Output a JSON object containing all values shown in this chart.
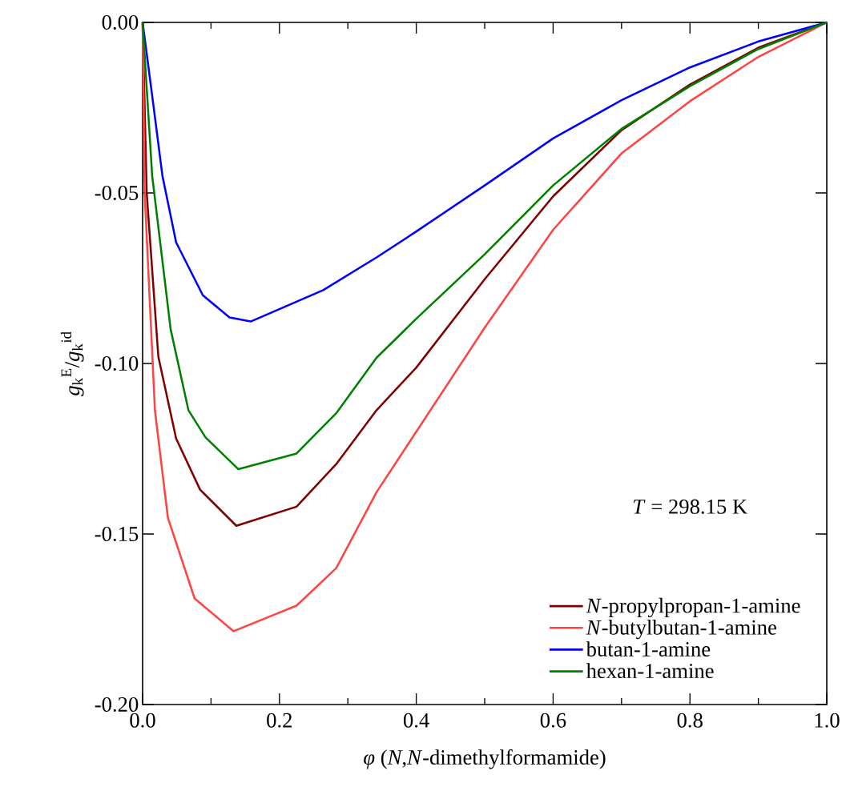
{
  "chart_data": {
    "type": "line",
    "xlabel": "*φ* (*N*,*N*-dimethylformamide)",
    "ylabel": "*g*$_{k}$$^{E}$/*g*$_{k}$$^{id}$",
    "annotations": [
      "*T* = 298.15 K"
    ],
    "xlim": [
      0,
      1
    ],
    "ylim": [
      -0.2,
      0
    ],
    "xticks": [
      {
        "value": 0,
        "label": "0.0"
      },
      {
        "value": 0.1,
        "label": null
      },
      {
        "value": 0.2,
        "label": "0.2"
      },
      {
        "value": 0.3,
        "label": null
      },
      {
        "value": 0.4,
        "label": "0.4"
      },
      {
        "value": 0.5,
        "label": null
      },
      {
        "value": 0.6,
        "label": "0.6"
      },
      {
        "value": 0.7,
        "label": null
      },
      {
        "value": 0.8,
        "label": "0.8"
      },
      {
        "value": 0.9,
        "label": null
      },
      {
        "value": 1,
        "label": "1.0"
      }
    ],
    "yticks": [
      {
        "value": -0.2,
        "label": "-0.20"
      },
      {
        "value": -0.15,
        "label": "-0.15"
      },
      {
        "value": -0.1,
        "label": "-0.10"
      },
      {
        "value": -0.05,
        "label": "-0.05"
      },
      {
        "value": 0,
        "label": "0.00"
      }
    ],
    "legend": "bottom right",
    "grid": false,
    "marker": "none",
    "line_style": "solid",
    "series": [
      {
        "name": "*N*-propylpropan-1-amine",
        "color": "#800000",
        "x": [
          0,
          0.006,
          0.023,
          0.049,
          0.084,
          0.137,
          0.225,
          0.283,
          0.342,
          0.4,
          0.5,
          0.6,
          0.7,
          0.8,
          0.9,
          1
        ],
        "values": [
          0,
          -0.05,
          -0.098,
          -0.122,
          -0.137,
          -0.1476,
          -0.142,
          -0.1295,
          -0.1137,
          -0.1012,
          -0.0753,
          -0.051,
          -0.0316,
          -0.0182,
          -0.0074,
          0
        ]
      },
      {
        "name": "*N*-butylbutan-1-amine",
        "color": "#ff4444",
        "x": [
          0,
          0.003,
          0.018,
          0.037,
          0.076,
          0.133,
          0.225,
          0.283,
          0.342,
          0.4,
          0.5,
          0.6,
          0.7,
          0.8,
          0.9,
          1
        ],
        "values": [
          0,
          -0.05,
          -0.1137,
          -0.1453,
          -0.1689,
          -0.1785,
          -0.171,
          -0.16,
          -0.1377,
          -0.12,
          -0.0895,
          -0.0608,
          -0.0384,
          -0.0231,
          -0.0101,
          0
        ]
      },
      {
        "name": "butan-1-amine",
        "color": "#0000ff",
        "x": [
          0,
          0.014,
          0.029,
          0.049,
          0.088,
          0.127,
          0.158,
          0.264,
          0.342,
          0.4,
          0.5,
          0.6,
          0.7,
          0.8,
          0.9,
          1
        ],
        "values": [
          0,
          -0.0215,
          -0.045,
          -0.0645,
          -0.08,
          -0.0865,
          -0.0877,
          -0.0785,
          -0.0689,
          -0.0613,
          -0.0478,
          -0.034,
          -0.0228,
          -0.0132,
          -0.0056,
          0
        ]
      },
      {
        "name": "hexan-1-amine",
        "color": "#008000",
        "x": [
          0,
          0.014,
          0.041,
          0.067,
          0.092,
          0.14,
          0.225,
          0.283,
          0.342,
          0.4,
          0.5,
          0.6,
          0.7,
          0.8,
          0.9,
          1
        ],
        "values": [
          0,
          -0.045,
          -0.09,
          -0.1137,
          -0.1217,
          -0.131,
          -0.1264,
          -0.1146,
          -0.0983,
          -0.0869,
          -0.068,
          -0.0478,
          -0.0312,
          -0.0187,
          -0.0078,
          0
        ]
      }
    ]
  }
}
